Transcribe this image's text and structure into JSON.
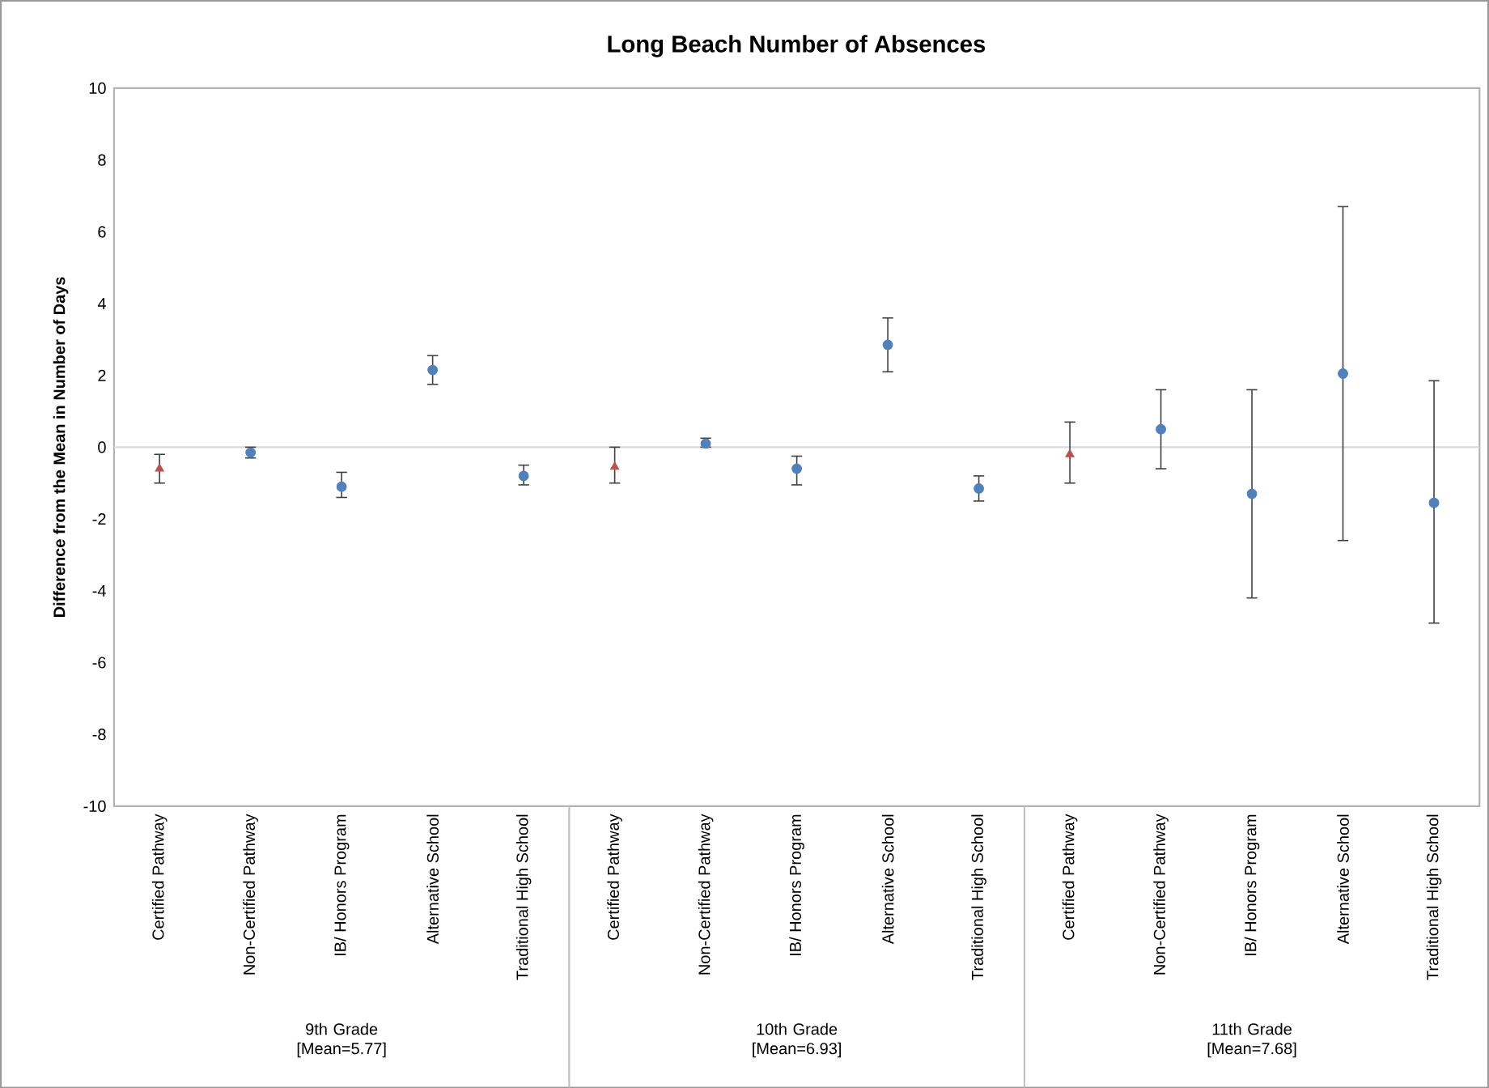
{
  "chart_data": {
    "type": "scatter",
    "title": "Long Beach Number of Absences",
    "ylabel": "Difference from the Mean in Number of Days",
    "categories": [
      "Certified Pathway",
      "Non-Certified Pathway",
      "IB/ Honors Program",
      "Alternative School",
      "Traditional High School",
      "Certified Pathway",
      "Non-Certified Pathway",
      "IB/ Honors Program",
      "Alternative School",
      "Traditional High School",
      "Certified Pathway",
      "Non-Certified Pathway",
      "IB/ Honors Program",
      "Alternative School",
      "Traditional High School"
    ],
    "series": [
      {
        "color": "#c0504d",
        "marker": "triangle",
        "values": [
          -0.6,
          null,
          null,
          null,
          null,
          -0.55,
          null,
          null,
          null,
          null,
          -0.2,
          null,
          null,
          null,
          null
        ],
        "errors": [
          [
            -1.0,
            -0.2
          ],
          null,
          null,
          null,
          null,
          [
            -1.0,
            0.0
          ],
          null,
          null,
          null,
          null,
          [
            -1.0,
            0.7
          ],
          null,
          null,
          null,
          null
        ]
      },
      {
        "color": "#4f81bd",
        "marker": "circle",
        "values": [
          null,
          -0.15,
          -1.1,
          2.15,
          -0.8,
          null,
          0.1,
          -0.6,
          2.85,
          -1.15,
          null,
          0.5,
          -1.3,
          2.05,
          -1.55
        ],
        "errors": [
          null,
          [
            -0.3,
            0.0
          ],
          [
            -1.4,
            -0.7
          ],
          [
            1.75,
            2.55
          ],
          [
            -1.05,
            -0.5
          ],
          null,
          [
            0.0,
            0.25
          ],
          [
            -1.05,
            -0.25
          ],
          [
            2.1,
            3.6
          ],
          [
            -1.5,
            -0.8
          ],
          null,
          [
            -0.6,
            1.6
          ],
          [
            -4.2,
            1.6
          ],
          [
            -2.6,
            6.7
          ],
          [
            -4.9,
            1.85
          ]
        ]
      }
    ],
    "ylim": [
      -10,
      10
    ],
    "yticks": [
      -10,
      -8,
      -6,
      -4,
      -2,
      0,
      2,
      4,
      6,
      8,
      10
    ],
    "ref_lines": [
      {
        "axis": "y",
        "value": 0,
        "color": "#d9d9d9"
      }
    ],
    "annotations": [
      "9th Grade [Mean=5.77]",
      "10th Grade [Mean=6.93]",
      "11th Grade [Mean=7.68]"
    ],
    "grid": false
  }
}
